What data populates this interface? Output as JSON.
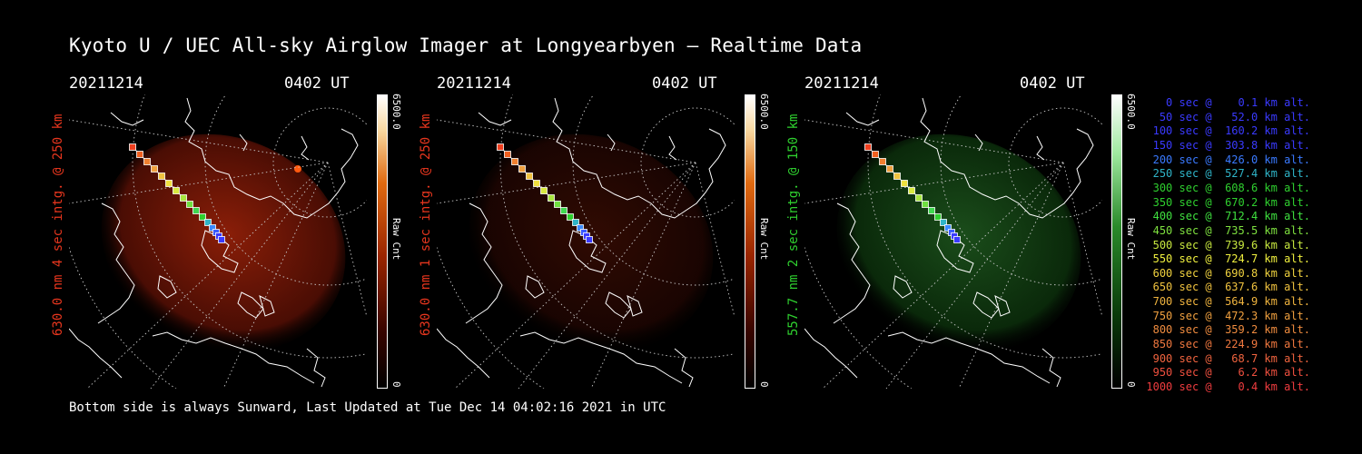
{
  "title": "Kyoto U / UEC All-sky Airglow Imager at Longyearbyen — Realtime Data",
  "footer": "Bottom side is always Sunward, Last Updated at Tue Dec 14 04:02:16 2021 in UTC",
  "panels": [
    {
      "date": "20211214",
      "time": "0402 UT",
      "ylabel": "630.0 nm 4 sec intg. @ 250 km",
      "ylabel_color": "#e8361e",
      "cbar_max": "6500.0",
      "cbar_min": "0",
      "cbar_unit": "Raw Cnt",
      "emission": "red",
      "intensity": "strong"
    },
    {
      "date": "20211214",
      "time": "0402 UT",
      "ylabel": "630.0 nm 1 sec intg. @ 250 km",
      "ylabel_color": "#e8361e",
      "cbar_max": "6500.0",
      "cbar_min": "0",
      "cbar_unit": "Raw Cnt",
      "emission": "red",
      "intensity": "weak"
    },
    {
      "date": "20211214",
      "time": "0402 UT",
      "ylabel": "557.7 nm 2 sec intg. @ 150 km",
      "ylabel_color": "#2fd02f",
      "cbar_max": "6500.0",
      "cbar_min": "0",
      "cbar_unit": "Raw Cnt",
      "emission": "green",
      "intensity": "medium"
    }
  ],
  "altitude_legend": [
    {
      "text": "   0 sec @    0.1 km alt.",
      "color": "#3a3aff"
    },
    {
      "text": "  50 sec @   52.0 km alt.",
      "color": "#3a3aff"
    },
    {
      "text": " 100 sec @  160.2 km alt.",
      "color": "#3a3aff"
    },
    {
      "text": " 150 sec @  303.8 km alt.",
      "color": "#3a3aff"
    },
    {
      "text": " 200 sec @  426.0 km alt.",
      "color": "#3a7aff"
    },
    {
      "text": " 250 sec @  527.4 km alt.",
      "color": "#2fb4c8"
    },
    {
      "text": " 300 sec @  608.6 km alt.",
      "color": "#2fd02f"
    },
    {
      "text": " 350 sec @  670.2 km alt.",
      "color": "#2fd02f"
    },
    {
      "text": " 400 sec @  712.4 km alt.",
      "color": "#3fe03f"
    },
    {
      "text": " 450 sec @  735.5 km alt.",
      "color": "#7ee03f"
    },
    {
      "text": " 500 sec @  739.6 km alt.",
      "color": "#c8e83f"
    },
    {
      "text": " 550 sec @  724.7 km alt.",
      "color": "#f0f03f"
    },
    {
      "text": " 600 sec @  690.8 km alt.",
      "color": "#f0d23f"
    },
    {
      "text": " 650 sec @  637.6 km alt.",
      "color": "#f0c23f"
    },
    {
      "text": " 700 sec @  564.9 km alt.",
      "color": "#f0b43f"
    },
    {
      "text": " 750 sec @  472.3 km alt.",
      "color": "#f0a03f"
    },
    {
      "text": " 800 sec @  359.2 km alt.",
      "color": "#f08c3f"
    },
    {
      "text": " 850 sec @  224.9 km alt.",
      "color": "#f0783f"
    },
    {
      "text": " 900 sec @   68.7 km alt.",
      "color": "#f0643f"
    },
    {
      "text": " 950 sec @    6.2 km alt.",
      "color": "#f0503f"
    },
    {
      "text": "1000 sec @    0.4 km alt.",
      "color": "#f03c3f"
    }
  ]
}
